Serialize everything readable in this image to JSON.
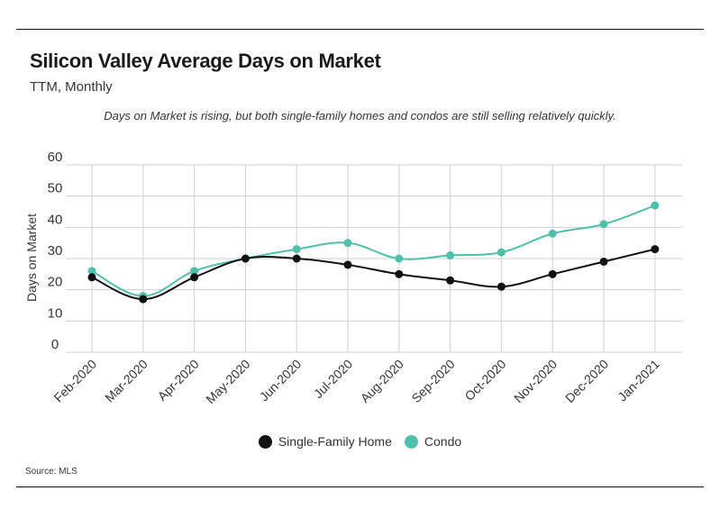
{
  "header": {
    "title": "Silicon Valley Average Days on Market",
    "subtitle": "TTM, Monthly",
    "note": "Days on Market is rising, but both single-family homes and condos are still selling relatively quickly."
  },
  "footer": {
    "source": "Source:  MLS"
  },
  "colors": {
    "single_family": "#111111",
    "condo": "#4dbfaa",
    "grid": "#cfcfcf"
  },
  "chart_data": {
    "type": "line",
    "categories": [
      "Feb-2020",
      "Mar-2020",
      "Apr-2020",
      "May-2020",
      "Jun-2020",
      "Jul-2020",
      "Aug-2020",
      "Sep-2020",
      "Oct-2020",
      "Nov-2020",
      "Dec-2020",
      "Jan-2021"
    ],
    "series": [
      {
        "name": "Single-Family Home",
        "values": [
          24,
          17,
          24,
          30,
          30,
          28,
          25,
          23,
          21,
          25,
          29,
          33
        ]
      },
      {
        "name": "Condo",
        "values": [
          26,
          18,
          26,
          30,
          33,
          35,
          30,
          31,
          32,
          38,
          41,
          47
        ]
      }
    ],
    "ylabel": "Days on Market",
    "ylim": [
      0,
      60
    ],
    "yticks": [
      0,
      10,
      20,
      30,
      40,
      50,
      60
    ],
    "grid": true,
    "legend": "bottom-center"
  }
}
